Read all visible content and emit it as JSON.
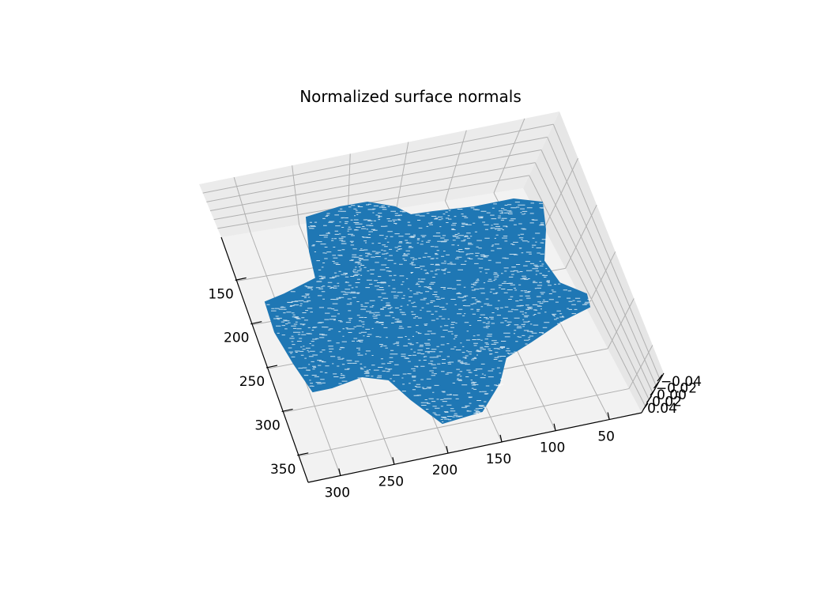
{
  "chart_data": {
    "type": "3d-quiver",
    "title": "Normalized surface normals",
    "xlabel": "",
    "ylabel": "",
    "zlabel": "",
    "x_ticks": [
      "150",
      "200",
      "250",
      "300",
      "350"
    ],
    "y_ticks": [
      "300",
      "250",
      "200",
      "150",
      "100",
      "50"
    ],
    "z_ticks": [
      "−0.04",
      "−0.02",
      "0.00",
      "0.02",
      "0.04"
    ],
    "xlim": [
      100,
      380
    ],
    "ylim": [
      20,
      330
    ],
    "zlim": [
      -0.05,
      0.05
    ],
    "grid": true,
    "series": [
      {
        "color": "#1f77b4"
      }
    ]
  }
}
